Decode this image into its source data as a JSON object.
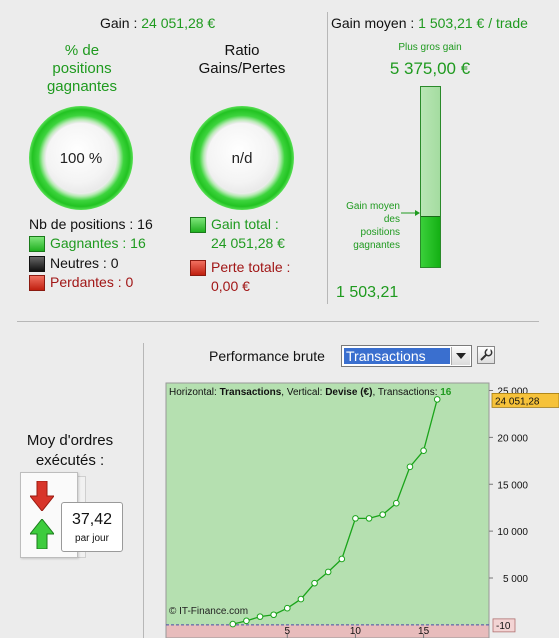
{
  "top": {
    "gain_label": "Gain : ",
    "gain_value": "24 051,28 €",
    "gain_moyen_label": "Gain moyen : ",
    "gain_moyen_value": "1 503,21 € / trade"
  },
  "pct_positions": {
    "title_lines": [
      "% de",
      "positions",
      "gagnantes"
    ],
    "value": "100 %",
    "percent": 100
  },
  "ratio": {
    "title_lines": [
      "Ratio",
      "Gains/Pertes"
    ],
    "value": "n/d"
  },
  "positions": {
    "nb_label": "Nb de positions : 16",
    "gagnantes": "Gagnantes : 16",
    "neutres": "Neutres : 0",
    "perdantes": "Perdantes : 0"
  },
  "totals": {
    "gain_total_label": "Gain total :",
    "gain_total_value": "24 051,28 €",
    "perte_totale_label": "Perte totale :",
    "perte_totale_value": "0,00 €"
  },
  "gain_bar": {
    "plus_gros_label": "Plus gros gain",
    "plus_gros_value": "5 375,00 €",
    "gain_moyen_lines": [
      "Gain moyen",
      "des",
      "positions",
      "gagnantes"
    ],
    "gain_moyen_value": "1 503,21",
    "fill_fraction": 0.28
  },
  "performance": {
    "label": "Performance brute",
    "selected": "Transactions"
  },
  "orders": {
    "title_lines": [
      "Moy d'ordres",
      "exécutés :"
    ],
    "value": "37,42",
    "unit": "par jour"
  },
  "colors": {
    "green_text": "#1f9a1f",
    "red_text": "#a11616",
    "plot_green": "#b5e0b0",
    "plot_red": "#e8bcbc",
    "line": "#1aa41a",
    "select_blue": "#3a6fcf"
  },
  "chart_data": {
    "type": "line",
    "header_parts": [
      "Horizontal: ",
      "Transactions",
      ", Vertical: ",
      "Devise (€)",
      ", Transactions: ",
      "16"
    ],
    "watermark": "© IT-Finance.com",
    "x": [
      1,
      2,
      3,
      4,
      5,
      6,
      7,
      8,
      9,
      10,
      11,
      12,
      13,
      14,
      15,
      16
    ],
    "series": [
      {
        "values": [
          85,
          430,
          880,
          1080,
          1780,
          2750,
          4450,
          5650,
          7030,
          11360,
          11360,
          11760,
          12980,
          16860,
          18580,
          24051.28
        ]
      }
    ],
    "xlim": [
      -3.9,
      19.8
    ],
    "ylim": [
      -1400,
      25800
    ],
    "x_ticks": [
      5,
      10,
      15
    ],
    "y_ticks": [
      {
        "v": 5000,
        "t": "5 000"
      },
      {
        "v": 10000,
        "t": "10 000"
      },
      {
        "v": 15000,
        "t": "15 000"
      },
      {
        "v": 20000,
        "t": "20 000"
      },
      {
        "v": 25000,
        "t": "25 000"
      }
    ],
    "baseline_label": "-10",
    "last_label": "24 051,28",
    "last_value": 24051.28
  }
}
